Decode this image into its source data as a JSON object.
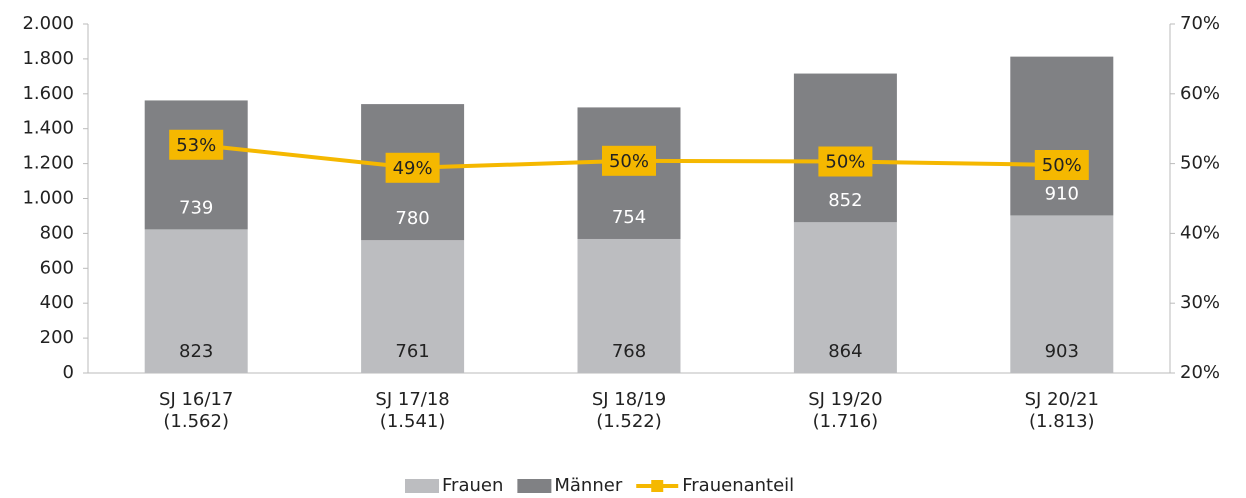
{
  "chart_data": {
    "type": "bar",
    "stacked": true,
    "categories": [
      [
        "SJ 16/17",
        "(1.562)"
      ],
      [
        "SJ 17/18",
        "(1.541)"
      ],
      [
        "SJ 18/19",
        "(1.522)"
      ],
      [
        "SJ 19/20",
        "(1.716)"
      ],
      [
        "SJ 20/21",
        "(1.813)"
      ]
    ],
    "series": [
      {
        "name": "Frauen",
        "color": "#bcbdc0",
        "values": [
          823,
          761,
          768,
          864,
          903
        ]
      },
      {
        "name": "Männer",
        "color": "#808184",
        "values": [
          739,
          780,
          754,
          852,
          910
        ]
      },
      {
        "name": "Frauenanteil",
        "type": "line",
        "axis": "y2",
        "color": "#f5b800",
        "values": [
          52.7,
          49.4,
          50.4,
          50.3,
          49.8
        ],
        "value_labels": [
          "53%",
          "49%",
          "50%",
          "50%",
          "50%"
        ]
      }
    ],
    "ylim": [
      0,
      2000
    ],
    "yticks": [
      0,
      200,
      400,
      600,
      800,
      {
        "value": 1000,
        "label": "1.000"
      },
      {
        "value": 1200,
        "label": "1.200"
      },
      {
        "value": 1400,
        "label": "1.400"
      },
      {
        "value": 1600,
        "label": "1.600"
      },
      {
        "value": 1800,
        "label": "1.800"
      },
      {
        "value": 2000,
        "label": "2.000"
      }
    ],
    "y2lim": [
      20,
      70
    ],
    "y2ticks": [
      {
        "value": 20,
        "label": "20%"
      },
      {
        "value": 30,
        "label": "30%"
      },
      {
        "value": 40,
        "label": "40%"
      },
      {
        "value": 50,
        "label": "50%"
      },
      {
        "value": 60,
        "label": "60%"
      },
      {
        "value": 70,
        "label": "70%"
      }
    ],
    "legend": "bottom",
    "grid": false
  }
}
